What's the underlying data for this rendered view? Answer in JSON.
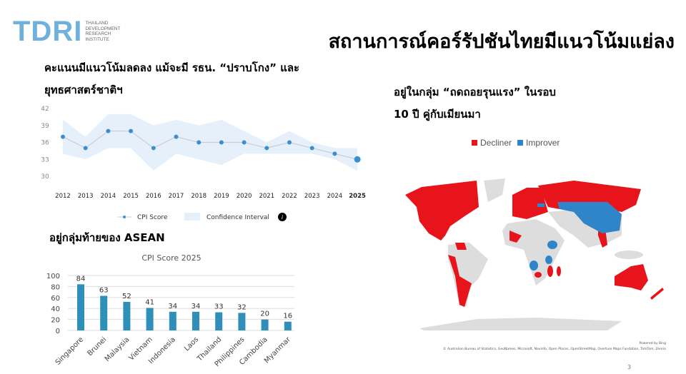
{
  "logo": {
    "text": "TDRI",
    "subtext": [
      "THAILAND",
      "DEVELOPMENT",
      "RESEARCH",
      "INSTITUTE"
    ]
  },
  "title": "สถานการณ์คอร์รัปชันไทยมีแนวโน้มแย่ลง",
  "left_heading": {
    "line1": "คะแนนมีแนวโน้มลดลง แม้จะมี รธน. “ปราบโกง” และ",
    "line2": "ยุทธศาสตร์ชาติฯ"
  },
  "right_heading": {
    "line1": "อยู่ในกลุ่ม “ถดถอยรุนแรง” ในรอบ",
    "line2": "10 ปี คู่กับเมียนมา"
  },
  "asean_heading": "อยู่กลุ่มท้ายของ ASEAN",
  "colors": {
    "accent_blue": "#3a8fd0",
    "band": "#e6f0fa",
    "bar": "#2e8fb8",
    "decliner": "#e8141c",
    "improver": "#2f85c8",
    "land": "#dddddd",
    "logo": "#6fb0dd"
  },
  "chart_data": [
    {
      "type": "line",
      "xlabel": "",
      "ylabel": "",
      "x": [
        "2012",
        "2013",
        "2014",
        "2015",
        "2016",
        "2017",
        "2018",
        "2019",
        "2020",
        "2021",
        "2022",
        "2023",
        "2024",
        "2025"
      ],
      "yticks": [
        "42",
        "39",
        "36",
        "33",
        "30"
      ],
      "ylim": [
        30,
        42
      ],
      "series": [
        {
          "name": "CPI Score",
          "values": [
            37,
            35,
            38,
            38,
            35,
            37,
            36,
            36,
            36,
            35,
            36,
            35,
            34,
            33
          ]
        }
      ],
      "confidence_interval": {
        "name": "Confidence Interval",
        "upper": [
          40,
          37,
          41,
          41,
          39,
          40,
          39,
          40,
          38,
          36,
          38,
          36,
          35,
          35
        ],
        "lower": [
          34,
          33,
          35,
          35,
          31,
          34,
          33,
          32,
          34,
          34,
          34,
          34,
          33,
          31
        ]
      },
      "legend": "bottom",
      "grid": false,
      "info_icon": "info-icon"
    },
    {
      "type": "bar",
      "title": "CPI Score 2025",
      "categories": [
        "Singapore",
        "Brunei",
        "Malaysia",
        "Vietnam",
        "Indonesia",
        "Laos",
        "Thailand",
        "Philippines",
        "Cambodia",
        "Myanmar"
      ],
      "values": [
        84,
        63,
        52,
        41,
        34,
        34,
        33,
        32,
        20,
        16
      ],
      "yticks": [
        "100",
        "80",
        "60",
        "40",
        "20",
        "0"
      ],
      "ylim": [
        0,
        100
      ],
      "grid": true
    }
  ],
  "map": {
    "legend": [
      {
        "label": "Decliner",
        "color": "#e8141c"
      },
      {
        "label": "Improver",
        "color": "#2f85c8"
      }
    ],
    "credits": [
      "Powered by Bing",
      "© Australian Bureau of Statistics, GeoNames, Microsoft, Navinfo, Open Places, OpenStreetMap, Overture Maps Fundation, TomTom, Zenrin"
    ]
  },
  "page_number": "3"
}
